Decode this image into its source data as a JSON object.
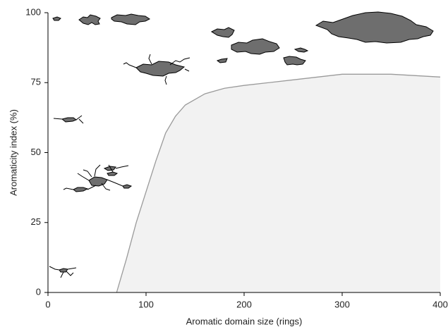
{
  "chart_data": {
    "type": "area",
    "x_label": "Aromatic domain size (rings)",
    "y_label": "Aromaticity index (%)",
    "x": [
      70,
      80,
      90,
      100,
      110,
      120,
      130,
      140,
      160,
      180,
      200,
      250,
      300,
      350,
      400
    ],
    "values": [
      0,
      12,
      25,
      36,
      47,
      57,
      63,
      67,
      71,
      73,
      74,
      76,
      78,
      78,
      77
    ],
    "color": "#f2f2f2",
    "line_color": "#9a9a9a",
    "xlim": [
      0,
      400
    ],
    "xticks": [
      0,
      100,
      200,
      300,
      400
    ],
    "ylim": [
      0,
      100
    ],
    "yticks": [
      0,
      25,
      50,
      75,
      100
    ]
  }
}
